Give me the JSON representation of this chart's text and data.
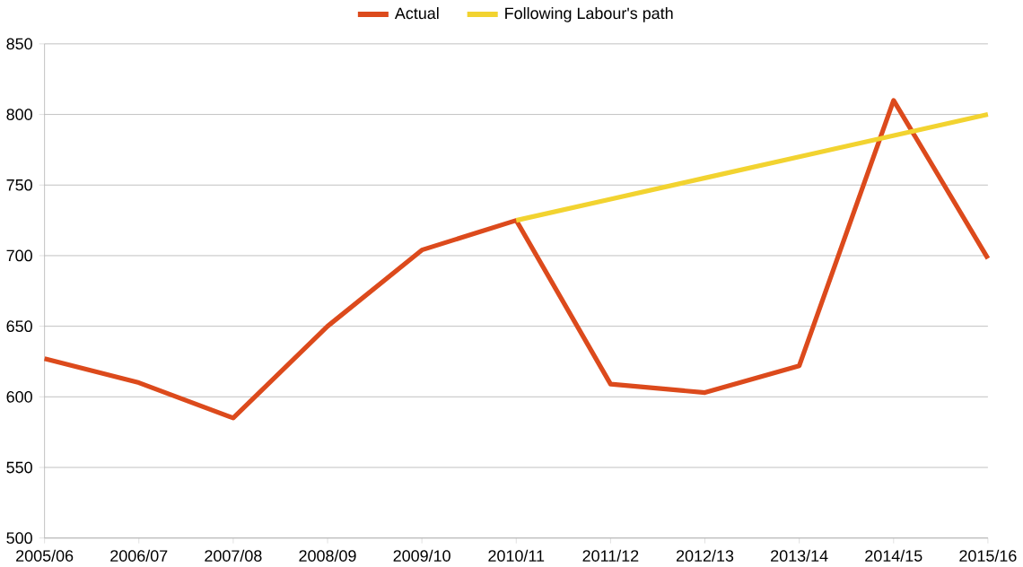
{
  "chart_data": {
    "type": "line",
    "categories": [
      "2005/06",
      "2006/07",
      "2007/08",
      "2008/09",
      "2009/10",
      "2010/11",
      "2011/12",
      "2012/13",
      "2013/14",
      "2014/15",
      "2015/16"
    ],
    "series": [
      {
        "name": "Actual",
        "color": "#dc4a1c",
        "values": [
          627,
          610,
          585,
          650,
          704,
          725,
          609,
          603,
          622,
          810,
          698
        ]
      },
      {
        "name": "Following Labour's path",
        "color": "#f2d330",
        "values": [
          null,
          null,
          null,
          null,
          null,
          725,
          740,
          755,
          770,
          785,
          800
        ]
      }
    ],
    "ylim": [
      500,
      850
    ],
    "yticks": [
      500,
      550,
      600,
      650,
      700,
      750,
      800,
      850
    ],
    "grid": "y",
    "legend": "top",
    "marker": "none",
    "line_style": "solid"
  }
}
